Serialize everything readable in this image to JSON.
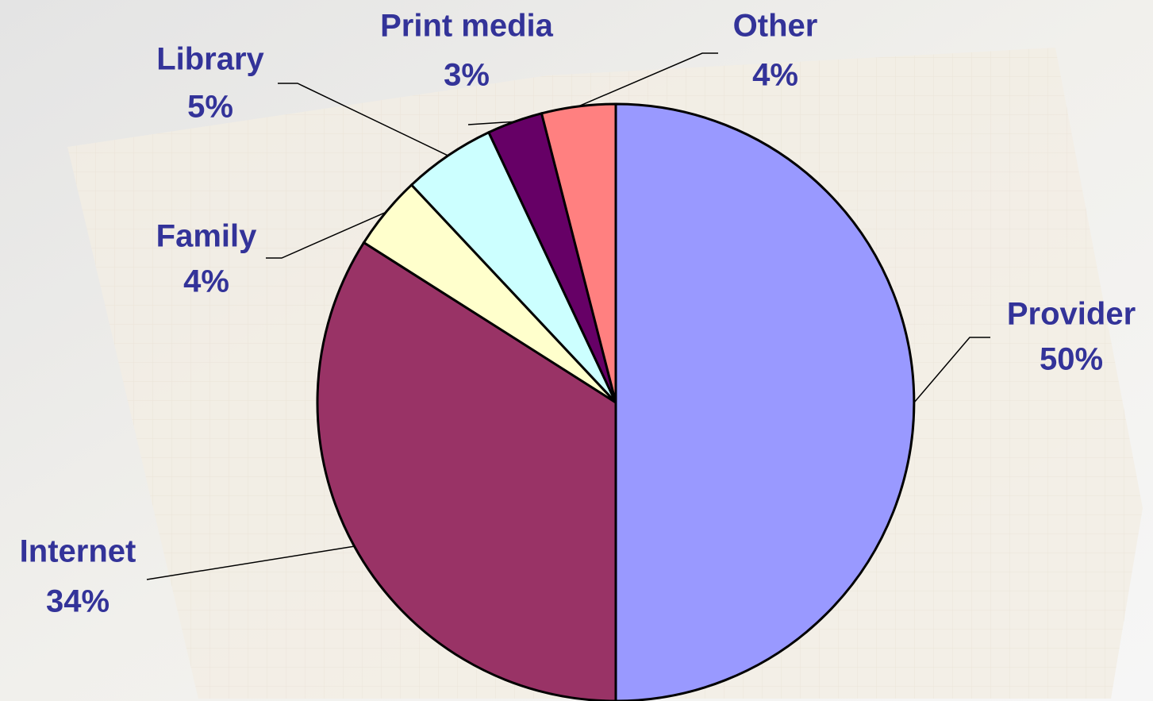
{
  "chart_data": {
    "type": "pie",
    "categories": [
      "Provider",
      "Internet",
      "Family",
      "Library",
      "Print media",
      "Other"
    ],
    "values": [
      50,
      34,
      4,
      5,
      3,
      4
    ],
    "value_labels": [
      "50%",
      "34%",
      "4%",
      "5%",
      "3%",
      "4%"
    ],
    "colors": [
      "#9999ff",
      "#993366",
      "#ffffcc",
      "#ccffff",
      "#660066",
      "#ff8080"
    ]
  }
}
